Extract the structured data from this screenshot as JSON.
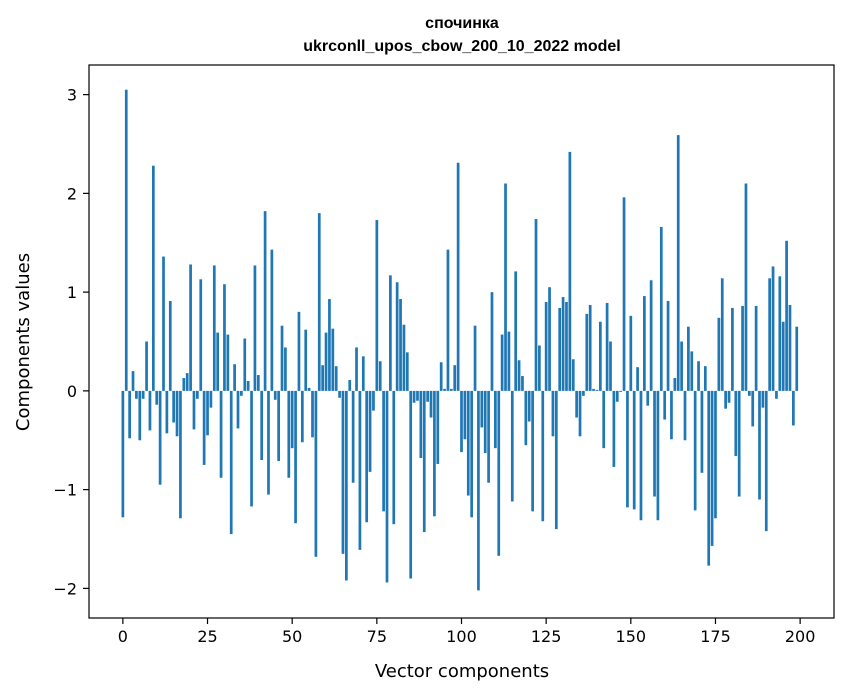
{
  "chart_data": {
    "type": "bar",
    "title": "спочинка",
    "subtitle": "ukrconll_upos_cbow_200_10_2022 model",
    "xlabel": "Vector components",
    "ylabel": "Components values",
    "xlim": [
      -10,
      210
    ],
    "ylim": [
      -2.3,
      3.3
    ],
    "xticks": [
      0,
      25,
      50,
      75,
      100,
      125,
      150,
      175,
      200
    ],
    "xtick_labels": [
      "0",
      "25",
      "50",
      "75",
      "100",
      "125",
      "150",
      "175",
      "200"
    ],
    "yticks": [
      -2,
      -1,
      0,
      1,
      2,
      3
    ],
    "ytick_labels": [
      "−2",
      "−1",
      "0",
      "1",
      "2",
      "3"
    ],
    "grid": false,
    "bar_color": "#1f77b4",
    "x": [
      0,
      1,
      2,
      3,
      4,
      5,
      6,
      7,
      8,
      9,
      10,
      11,
      12,
      13,
      14,
      15,
      16,
      17,
      18,
      19,
      20,
      21,
      22,
      23,
      24,
      25,
      26,
      27,
      28,
      29,
      30,
      31,
      32,
      33,
      34,
      35,
      36,
      37,
      38,
      39,
      40,
      41,
      42,
      43,
      44,
      45,
      46,
      47,
      48,
      49,
      50,
      51,
      52,
      53,
      54,
      55,
      56,
      57,
      58,
      59,
      60,
      61,
      62,
      63,
      64,
      65,
      66,
      67,
      68,
      69,
      70,
      71,
      72,
      73,
      74,
      75,
      76,
      77,
      78,
      79,
      80,
      81,
      82,
      83,
      84,
      85,
      86,
      87,
      88,
      89,
      90,
      91,
      92,
      93,
      94,
      95,
      96,
      97,
      98,
      99,
      100,
      101,
      102,
      103,
      104,
      105,
      106,
      107,
      108,
      109,
      110,
      111,
      112,
      113,
      114,
      115,
      116,
      117,
      118,
      119,
      120,
      121,
      122,
      123,
      124,
      125,
      126,
      127,
      128,
      129,
      130,
      131,
      132,
      133,
      134,
      135,
      136,
      137,
      138,
      139,
      140,
      141,
      142,
      143,
      144,
      145,
      146,
      147,
      148,
      149,
      150,
      151,
      152,
      153,
      154,
      155,
      156,
      157,
      158,
      159,
      160,
      161,
      162,
      163,
      164,
      165,
      166,
      167,
      168,
      169,
      170,
      171,
      172,
      173,
      174,
      175,
      176,
      177,
      178,
      179,
      180,
      181,
      182,
      183,
      184,
      185,
      186,
      187,
      188,
      189,
      190,
      191,
      192,
      193,
      194,
      195,
      196,
      197,
      198,
      199
    ],
    "values": [
      -1.28,
      3.05,
      -0.48,
      0.2,
      -0.08,
      -0.5,
      -0.08,
      0.5,
      -0.4,
      2.28,
      -0.14,
      -0.95,
      1.36,
      -0.43,
      0.91,
      -0.32,
      -0.46,
      -1.29,
      0.13,
      0.18,
      1.28,
      -0.39,
      -0.08,
      1.13,
      -0.75,
      -0.45,
      -0.17,
      1.27,
      0.59,
      -0.88,
      1.08,
      0.57,
      -1.45,
      0.27,
      -0.38,
      -0.05,
      0.53,
      0.1,
      -1.17,
      1.27,
      0.16,
      -0.7,
      1.82,
      -1.05,
      1.43,
      -0.09,
      -0.71,
      0.66,
      0.44,
      -0.88,
      -0.58,
      -1.34,
      0.8,
      -0.52,
      0.62,
      0.03,
      -0.47,
      -1.68,
      1.8,
      0.26,
      0.59,
      0.93,
      0.63,
      0.25,
      -0.07,
      -1.65,
      -1.92,
      0.11,
      -0.93,
      0.44,
      -1.61,
      0.35,
      -1.33,
      -0.82,
      -0.2,
      1.73,
      0.3,
      -1.22,
      -1.94,
      1.17,
      -1.35,
      1.1,
      0.93,
      0.67,
      0.39,
      -1.9,
      -0.12,
      -0.1,
      -0.68,
      -1.43,
      -0.11,
      -0.27,
      -1.27,
      -0.74,
      0.29,
      0.02,
      1.43,
      0.02,
      0.26,
      2.31,
      -0.62,
      -0.49,
      -1.06,
      -1.28,
      0.66,
      -2.02,
      -0.37,
      -0.63,
      -0.93,
      1.0,
      -0.58,
      -1.67,
      0.57,
      2.1,
      0.6,
      -1.12,
      1.21,
      0.31,
      0.15,
      -0.55,
      -0.31,
      -1.22,
      1.74,
      0.46,
      -1.32,
      0.9,
      1.05,
      -0.46,
      -1.4,
      0.84,
      0.95,
      0.9,
      2.42,
      0.32,
      -0.27,
      -0.46,
      -0.05,
      0.78,
      0.87,
      0.02,
      0.01,
      0.7,
      -0.58,
      0.89,
      0.5,
      -0.77,
      -0.11,
      -0.01,
      1.96,
      -1.18,
      0.76,
      -1.2,
      0.24,
      -1.31,
      0.96,
      -0.15,
      1.12,
      -1.07,
      -1.31,
      1.66,
      -0.29,
      0.91,
      -0.49,
      0.13,
      2.59,
      0.5,
      -0.5,
      0.65,
      0.4,
      -1.21,
      0.3,
      -0.83,
      0.25,
      -1.77,
      -1.57,
      -1.29,
      0.74,
      1.14,
      -0.18,
      -0.12,
      0.84,
      -0.66,
      -1.07,
      0.86,
      2.1,
      -0.05,
      -0.36,
      0.86,
      -1.1,
      -0.17,
      -1.42,
      1.14,
      1.26,
      -0.08,
      1.16,
      0.7,
      1.52,
      0.87,
      -0.35,
      0.65
    ]
  }
}
